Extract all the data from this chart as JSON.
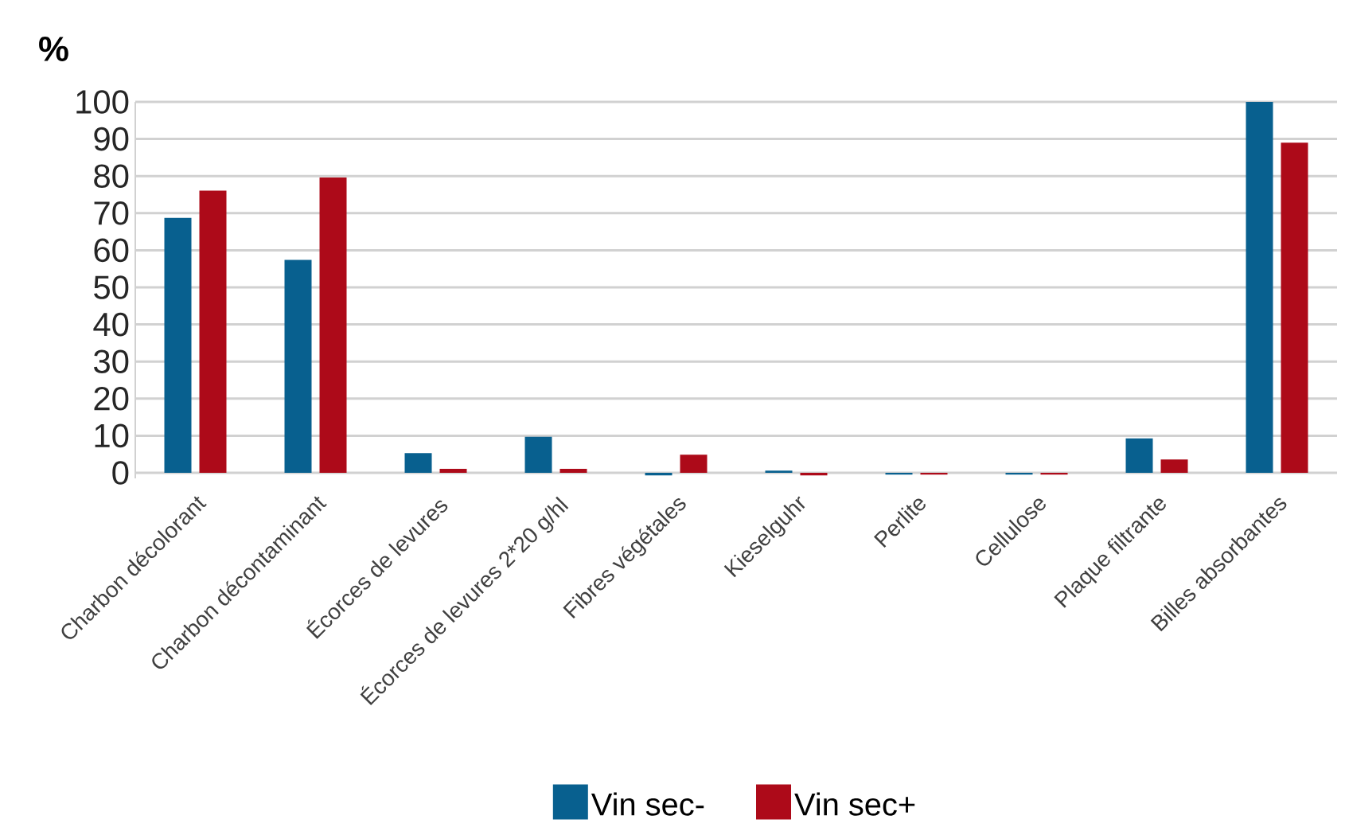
{
  "chart_data": {
    "type": "bar",
    "ylabel": "%",
    "categories": [
      "Charbon décolorant",
      "Charbon décontaminant",
      "Écorces de levures",
      "Écorces de levures 2*20 g/hl",
      "Fibres végétales",
      "Kieselguhr",
      "Perlite",
      "Cellulose",
      "Plaque filtrante",
      "Billes absorbantes"
    ],
    "series": [
      {
        "name": "Vin sec-",
        "color": "#08608f",
        "values": [
          68.7,
          57.4,
          5.3,
          9.7,
          -0.7,
          0.6,
          -0.5,
          -0.5,
          9.3,
          100
        ]
      },
      {
        "name": "Vin sec+",
        "color": "#ad0a19",
        "values": [
          76.1,
          79.6,
          1.1,
          1.1,
          4.9,
          -0.7,
          -0.5,
          -0.5,
          3.6,
          89
        ]
      }
    ],
    "ylim": [
      -1.5,
      100
    ],
    "yticks": [
      0,
      10,
      20,
      30,
      40,
      50,
      60,
      70,
      80,
      90,
      100
    ],
    "grid": "y",
    "legend": "bottom"
  }
}
